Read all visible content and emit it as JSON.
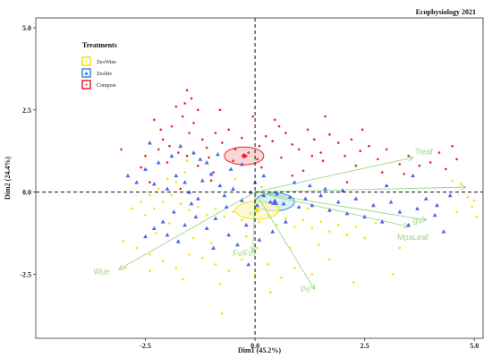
{
  "chart_data": {
    "type": "scatter",
    "subtype": "pca-biplot",
    "corner_title": "Ecophysiology 2021",
    "xlabel": "Dim1 (45.2%)",
    "ylabel": "Dim2 (24.4%)",
    "xlim": [
      -5.0,
      5.2
    ],
    "ylim": [
      -4.45,
      5.3
    ],
    "xticks": [
      -2.5,
      0.0,
      2.5,
      5.0
    ],
    "xtick_labels": [
      "-2.5",
      "0.0",
      "2.5",
      "5.0"
    ],
    "yticks": [
      -2.5,
      0.0,
      2.5,
      5.0
    ],
    "ytick_labels": [
      "-2.5",
      "0.0",
      "2.5",
      "5.0"
    ],
    "grid": false,
    "reference_lines": "dashed at x=0 and y=0",
    "legend": {
      "title": "Treatments",
      "position": "top-left",
      "entries": [
        {
          "label": "ZeoWine",
          "color": "#f2e500",
          "marker": "circle"
        },
        {
          "label": "Zeolite",
          "color": "#4a66e8",
          "marker": "triangle"
        },
        {
          "label": "Compost",
          "color": "#e8242c",
          "marker": "circle"
        }
      ]
    },
    "ellipses": [
      {
        "series": "Compost",
        "center": [
          -0.25,
          1.1
        ],
        "rx": 0.45,
        "ry": 0.27,
        "stroke": "#e8242c",
        "fill": "#f7c9c9"
      },
      {
        "series": "Zeolite",
        "center": [
          0.45,
          -0.3
        ],
        "rx": 0.45,
        "ry": 0.27,
        "stroke": "#3a8ad8",
        "fill": "#c9eef2"
      },
      {
        "series": "ZeoWine",
        "center": [
          0.05,
          -0.55
        ],
        "rx": 0.5,
        "ry": 0.27,
        "stroke": "#f2e500",
        "fill": "#fbf7c9"
      }
    ],
    "loadings_color": "#9fd58a",
    "loadings": [
      {
        "name": "Tleaf",
        "x": 3.6,
        "y": 1.05
      },
      {
        "name": "",
        "x": 4.8,
        "y": 0.15
      },
      {
        "name": "gs",
        "x": 3.9,
        "y": -0.85
      },
      {
        "name": "MpaLeaf",
        "x": 3.5,
        "y": -1.05
      },
      {
        "name": "Fv/Fm",
        "x": -0.05,
        "y": -1.8
      },
      {
        "name": "Pn",
        "x": 1.35,
        "y": -2.95
      },
      {
        "name": "Wue",
        "x": -3.1,
        "y": -2.35
      }
    ],
    "loading_label_positions": [
      {
        "name": "Tleaf",
        "x": 3.85,
        "y": 1.15
      },
      {
        "name": "gs",
        "x": 3.7,
        "y": -0.95
      },
      {
        "name": "MpaLeaf",
        "x": 3.6,
        "y": -1.45
      },
      {
        "name": "Fv/Fm",
        "x": -0.25,
        "y": -1.95
      },
      {
        "name": "Pn",
        "x": 1.15,
        "y": -3.05
      },
      {
        "name": "Wue",
        "x": -3.5,
        "y": -2.5
      }
    ],
    "series": [
      {
        "name": "Compost",
        "color": "#e8242c",
        "marker": "circle",
        "points": [
          [
            -1.6,
            2.7
          ],
          [
            -1.8,
            2.6
          ],
          [
            -1.65,
            2.3
          ],
          [
            -1.9,
            2.0
          ],
          [
            -1.4,
            2.1
          ],
          [
            -1.3,
            2.5
          ],
          [
            -1.5,
            1.8
          ],
          [
            -2.1,
            1.6
          ],
          [
            -2.3,
            2.2
          ],
          [
            -1.95,
            1.4
          ],
          [
            -2.2,
            1.3
          ],
          [
            -2.5,
            1.1
          ],
          [
            -1.75,
            1.2
          ],
          [
            -1.55,
            1.1
          ],
          [
            -1.2,
            1.6
          ],
          [
            -1.1,
            1.35
          ],
          [
            -0.9,
            1.8
          ],
          [
            -0.75,
            1.5
          ],
          [
            -0.6,
            1.9
          ],
          [
            -0.45,
            1.3
          ],
          [
            -0.3,
            1.65
          ],
          [
            -0.15,
            1.2
          ],
          [
            0.1,
            1.4
          ],
          [
            0.25,
            1.7
          ],
          [
            0.4,
            1.55
          ],
          [
            0.55,
            2.0
          ],
          [
            0.7,
            1.8
          ],
          [
            0.85,
            1.45
          ],
          [
            1.0,
            1.3
          ],
          [
            1.2,
            1.9
          ],
          [
            1.35,
            1.6
          ],
          [
            1.5,
            1.2
          ],
          [
            1.7,
            1.75
          ],
          [
            1.9,
            1.5
          ],
          [
            2.05,
            1.1
          ],
          [
            2.2,
            1.6
          ],
          [
            2.4,
            1.25
          ],
          [
            2.6,
            1.4
          ],
          [
            2.8,
            1.0
          ],
          [
            3.0,
            1.3
          ],
          [
            3.3,
            0.85
          ],
          [
            3.5,
            1.1
          ],
          [
            3.75,
            0.8
          ],
          [
            4.0,
            0.9
          ],
          [
            4.2,
            1.2
          ],
          [
            4.5,
            1.4
          ],
          [
            4.6,
            1.0
          ],
          [
            -3.05,
            1.3
          ],
          [
            -1.05,
            1.05
          ],
          [
            -0.5,
            0.95
          ],
          [
            0.6,
            1.05
          ],
          [
            1.55,
            0.95
          ],
          [
            2.3,
            0.8
          ],
          [
            2.9,
            0.6
          ],
          [
            -2.0,
            0.9
          ],
          [
            -2.6,
            0.75
          ],
          [
            -1.3,
            0.8
          ],
          [
            0.15,
            0.75
          ],
          [
            1.1,
            0.65
          ],
          [
            -0.2,
            1.1
          ],
          [
            -0.05,
            2.3
          ],
          [
            0.45,
            2.2
          ],
          [
            1.6,
            2.3
          ],
          [
            -0.8,
            2.5
          ],
          [
            -1.55,
            3.1
          ],
          [
            -1.45,
            2.85
          ],
          [
            0.05,
            1.0
          ],
          [
            3.4,
            0.55
          ],
          [
            4.35,
            0.7
          ],
          [
            -2.4,
            0.3
          ],
          [
            -1.0,
            0.35
          ],
          [
            0.85,
            0.5
          ],
          [
            2.1,
            0.3
          ],
          [
            -1.7,
            0.1
          ],
          [
            1.3,
            1.1
          ],
          [
            -0.95,
            0.6
          ],
          [
            2.45,
            1.9
          ],
          [
            -2.15,
            1.9
          ]
        ]
      },
      {
        "name": "Zeolite",
        "color": "#4a66e8",
        "marker": "triangle",
        "points": [
          [
            -1.4,
            1.2
          ],
          [
            -1.25,
            1.0
          ],
          [
            -1.1,
            0.9
          ],
          [
            -1.7,
            1.4
          ],
          [
            -1.9,
            1.1
          ],
          [
            -2.2,
            0.9
          ],
          [
            -2.5,
            0.7
          ],
          [
            -2.9,
            0.5
          ],
          [
            -2.7,
            0.3
          ],
          [
            -2.3,
            0.25
          ],
          [
            -2.0,
            0.1
          ],
          [
            -1.8,
            0.5
          ],
          [
            -1.6,
            0.3
          ],
          [
            -1.5,
            0.0
          ],
          [
            -1.3,
            -0.2
          ],
          [
            -1.2,
            0.35
          ],
          [
            -1.0,
            0.55
          ],
          [
            -0.8,
            0.2
          ],
          [
            -0.7,
            -0.1
          ],
          [
            -0.5,
            0.1
          ],
          [
            -0.3,
            -0.25
          ],
          [
            -0.1,
            0.0
          ],
          [
            0.05,
            -0.4
          ],
          [
            0.2,
            -0.1
          ],
          [
            0.35,
            -0.3
          ],
          [
            0.5,
            -0.05
          ],
          [
            0.65,
            -0.35
          ],
          [
            0.8,
            -0.15
          ],
          [
            1.0,
            -0.45
          ],
          [
            1.15,
            -0.2
          ],
          [
            1.3,
            -0.4
          ],
          [
            1.5,
            -0.1
          ],
          [
            1.7,
            -0.55
          ],
          [
            1.9,
            -0.3
          ],
          [
            2.1,
            -0.65
          ],
          [
            2.3,
            -0.2
          ],
          [
            2.5,
            -0.75
          ],
          [
            2.7,
            -0.4
          ],
          [
            2.9,
            -0.9
          ],
          [
            3.1,
            -0.3
          ],
          [
            3.3,
            -0.6
          ],
          [
            3.5,
            -1.0
          ],
          [
            3.7,
            -0.5
          ],
          [
            3.9,
            -0.2
          ],
          [
            4.1,
            -0.7
          ],
          [
            4.3,
            -1.2
          ],
          [
            4.45,
            -0.1
          ],
          [
            3.6,
            0.5
          ],
          [
            -1.85,
            -0.6
          ],
          [
            -2.1,
            -0.9
          ],
          [
            -2.3,
            -1.1
          ],
          [
            -2.5,
            -1.35
          ],
          [
            -1.6,
            -1.0
          ],
          [
            -1.35,
            -0.75
          ],
          [
            -1.1,
            -1.1
          ],
          [
            -0.9,
            -0.8
          ],
          [
            -0.6,
            -1.3
          ],
          [
            -0.4,
            -1.6
          ],
          [
            -0.2,
            -1.0
          ],
          [
            0.1,
            -1.45
          ],
          [
            0.4,
            -1.2
          ],
          [
            0.7,
            -0.9
          ],
          [
            -1.75,
            -1.5
          ],
          [
            -2.0,
            -1.3
          ],
          [
            -0.95,
            -1.7
          ],
          [
            -0.15,
            -2.2
          ],
          [
            0.9,
            0.3
          ],
          [
            1.25,
            0.2
          ],
          [
            -0.55,
            0.7
          ],
          [
            -0.3,
            0.85
          ],
          [
            0.2,
            0.5
          ],
          [
            -2.4,
            1.5
          ],
          [
            -0.85,
            1.15
          ],
          [
            2.0,
            0.05
          ],
          [
            3.0,
            0.2
          ],
          [
            4.15,
            -0.4
          ],
          [
            -1.45,
            -0.35
          ],
          [
            -0.65,
            -0.45
          ],
          [
            0.0,
            0.3
          ],
          [
            1.6,
            0.1
          ]
        ]
      },
      {
        "name": "ZeoWine",
        "color": "#f2e500",
        "marker": "circle",
        "points": [
          [
            -1.6,
            0.6
          ],
          [
            -1.8,
            0.3
          ],
          [
            -2.0,
            0.4
          ],
          [
            -2.2,
            0.1
          ],
          [
            -2.4,
            -0.1
          ],
          [
            -2.6,
            -0.3
          ],
          [
            -2.8,
            -0.5
          ],
          [
            -2.5,
            -0.7
          ],
          [
            -2.3,
            -0.5
          ],
          [
            -2.1,
            -0.3
          ],
          [
            -1.9,
            -0.1
          ],
          [
            -1.7,
            -0.35
          ],
          [
            -1.5,
            -0.55
          ],
          [
            -1.3,
            -0.45
          ],
          [
            -1.1,
            -0.7
          ],
          [
            -0.9,
            -0.5
          ],
          [
            -0.7,
            -0.75
          ],
          [
            -0.5,
            -0.6
          ],
          [
            -0.3,
            -0.85
          ],
          [
            -0.1,
            -0.65
          ],
          [
            0.1,
            -0.9
          ],
          [
            0.3,
            -0.7
          ],
          [
            0.5,
            -1.0
          ],
          [
            0.7,
            -0.8
          ],
          [
            0.9,
            -1.05
          ],
          [
            1.1,
            -0.85
          ],
          [
            1.3,
            -1.1
          ],
          [
            1.5,
            -0.9
          ],
          [
            1.7,
            -1.2
          ],
          [
            1.9,
            -1.0
          ],
          [
            2.1,
            -1.3
          ],
          [
            2.3,
            -1.05
          ],
          [
            2.5,
            -1.4
          ],
          [
            -3.0,
            -1.5
          ],
          [
            -2.7,
            -1.7
          ],
          [
            -2.4,
            -1.9
          ],
          [
            -2.1,
            -2.1
          ],
          [
            -1.8,
            -2.3
          ],
          [
            -1.5,
            -1.9
          ],
          [
            -1.2,
            -2.0
          ],
          [
            -0.9,
            -2.2
          ],
          [
            -0.6,
            -2.4
          ],
          [
            -0.3,
            -2.05
          ],
          [
            0.0,
            -2.5
          ],
          [
            0.3,
            -2.2
          ],
          [
            0.6,
            -2.6
          ],
          [
            0.9,
            -2.3
          ],
          [
            1.3,
            -2.5
          ],
          [
            1.7,
            -2.05
          ],
          [
            2.25,
            -2.75
          ],
          [
            -2.4,
            -2.4
          ],
          [
            -0.8,
            -2.8
          ],
          [
            0.05,
            -1.7
          ],
          [
            -0.75,
            -3.7
          ],
          [
            0.35,
            -3.05
          ],
          [
            -1.95,
            -0.95
          ],
          [
            -1.4,
            -1.4
          ],
          [
            0.15,
            0.15
          ],
          [
            -0.45,
            0.4
          ],
          [
            1.2,
            -0.5
          ],
          [
            4.5,
            0.35
          ],
          [
            4.7,
            0.25
          ],
          [
            4.85,
            -0.15
          ],
          [
            5.0,
            -0.25
          ],
          [
            4.95,
            -0.45
          ],
          [
            5.05,
            -0.75
          ],
          [
            4.6,
            -0.6
          ],
          [
            3.15,
            -2.5
          ],
          [
            3.3,
            -1.7
          ],
          [
            -2.95,
            -2.3
          ],
          [
            -1.0,
            -1.55
          ],
          [
            1.45,
            -1.6
          ],
          [
            -0.2,
            -1.35
          ],
          [
            2.75,
            -0.95
          ],
          [
            -2.25,
            -1.25
          ],
          [
            0.8,
            -1.7
          ],
          [
            -1.65,
            -2.65
          ],
          [
            -1.55,
            0.95
          ]
        ]
      }
    ],
    "means": [
      {
        "series": "Compost",
        "x": -0.25,
        "y": 1.1
      },
      {
        "series": "Zeolite",
        "x": 0.45,
        "y": -0.3
      },
      {
        "series": "ZeoWine",
        "x": 0.05,
        "y": -0.55
      }
    ]
  }
}
